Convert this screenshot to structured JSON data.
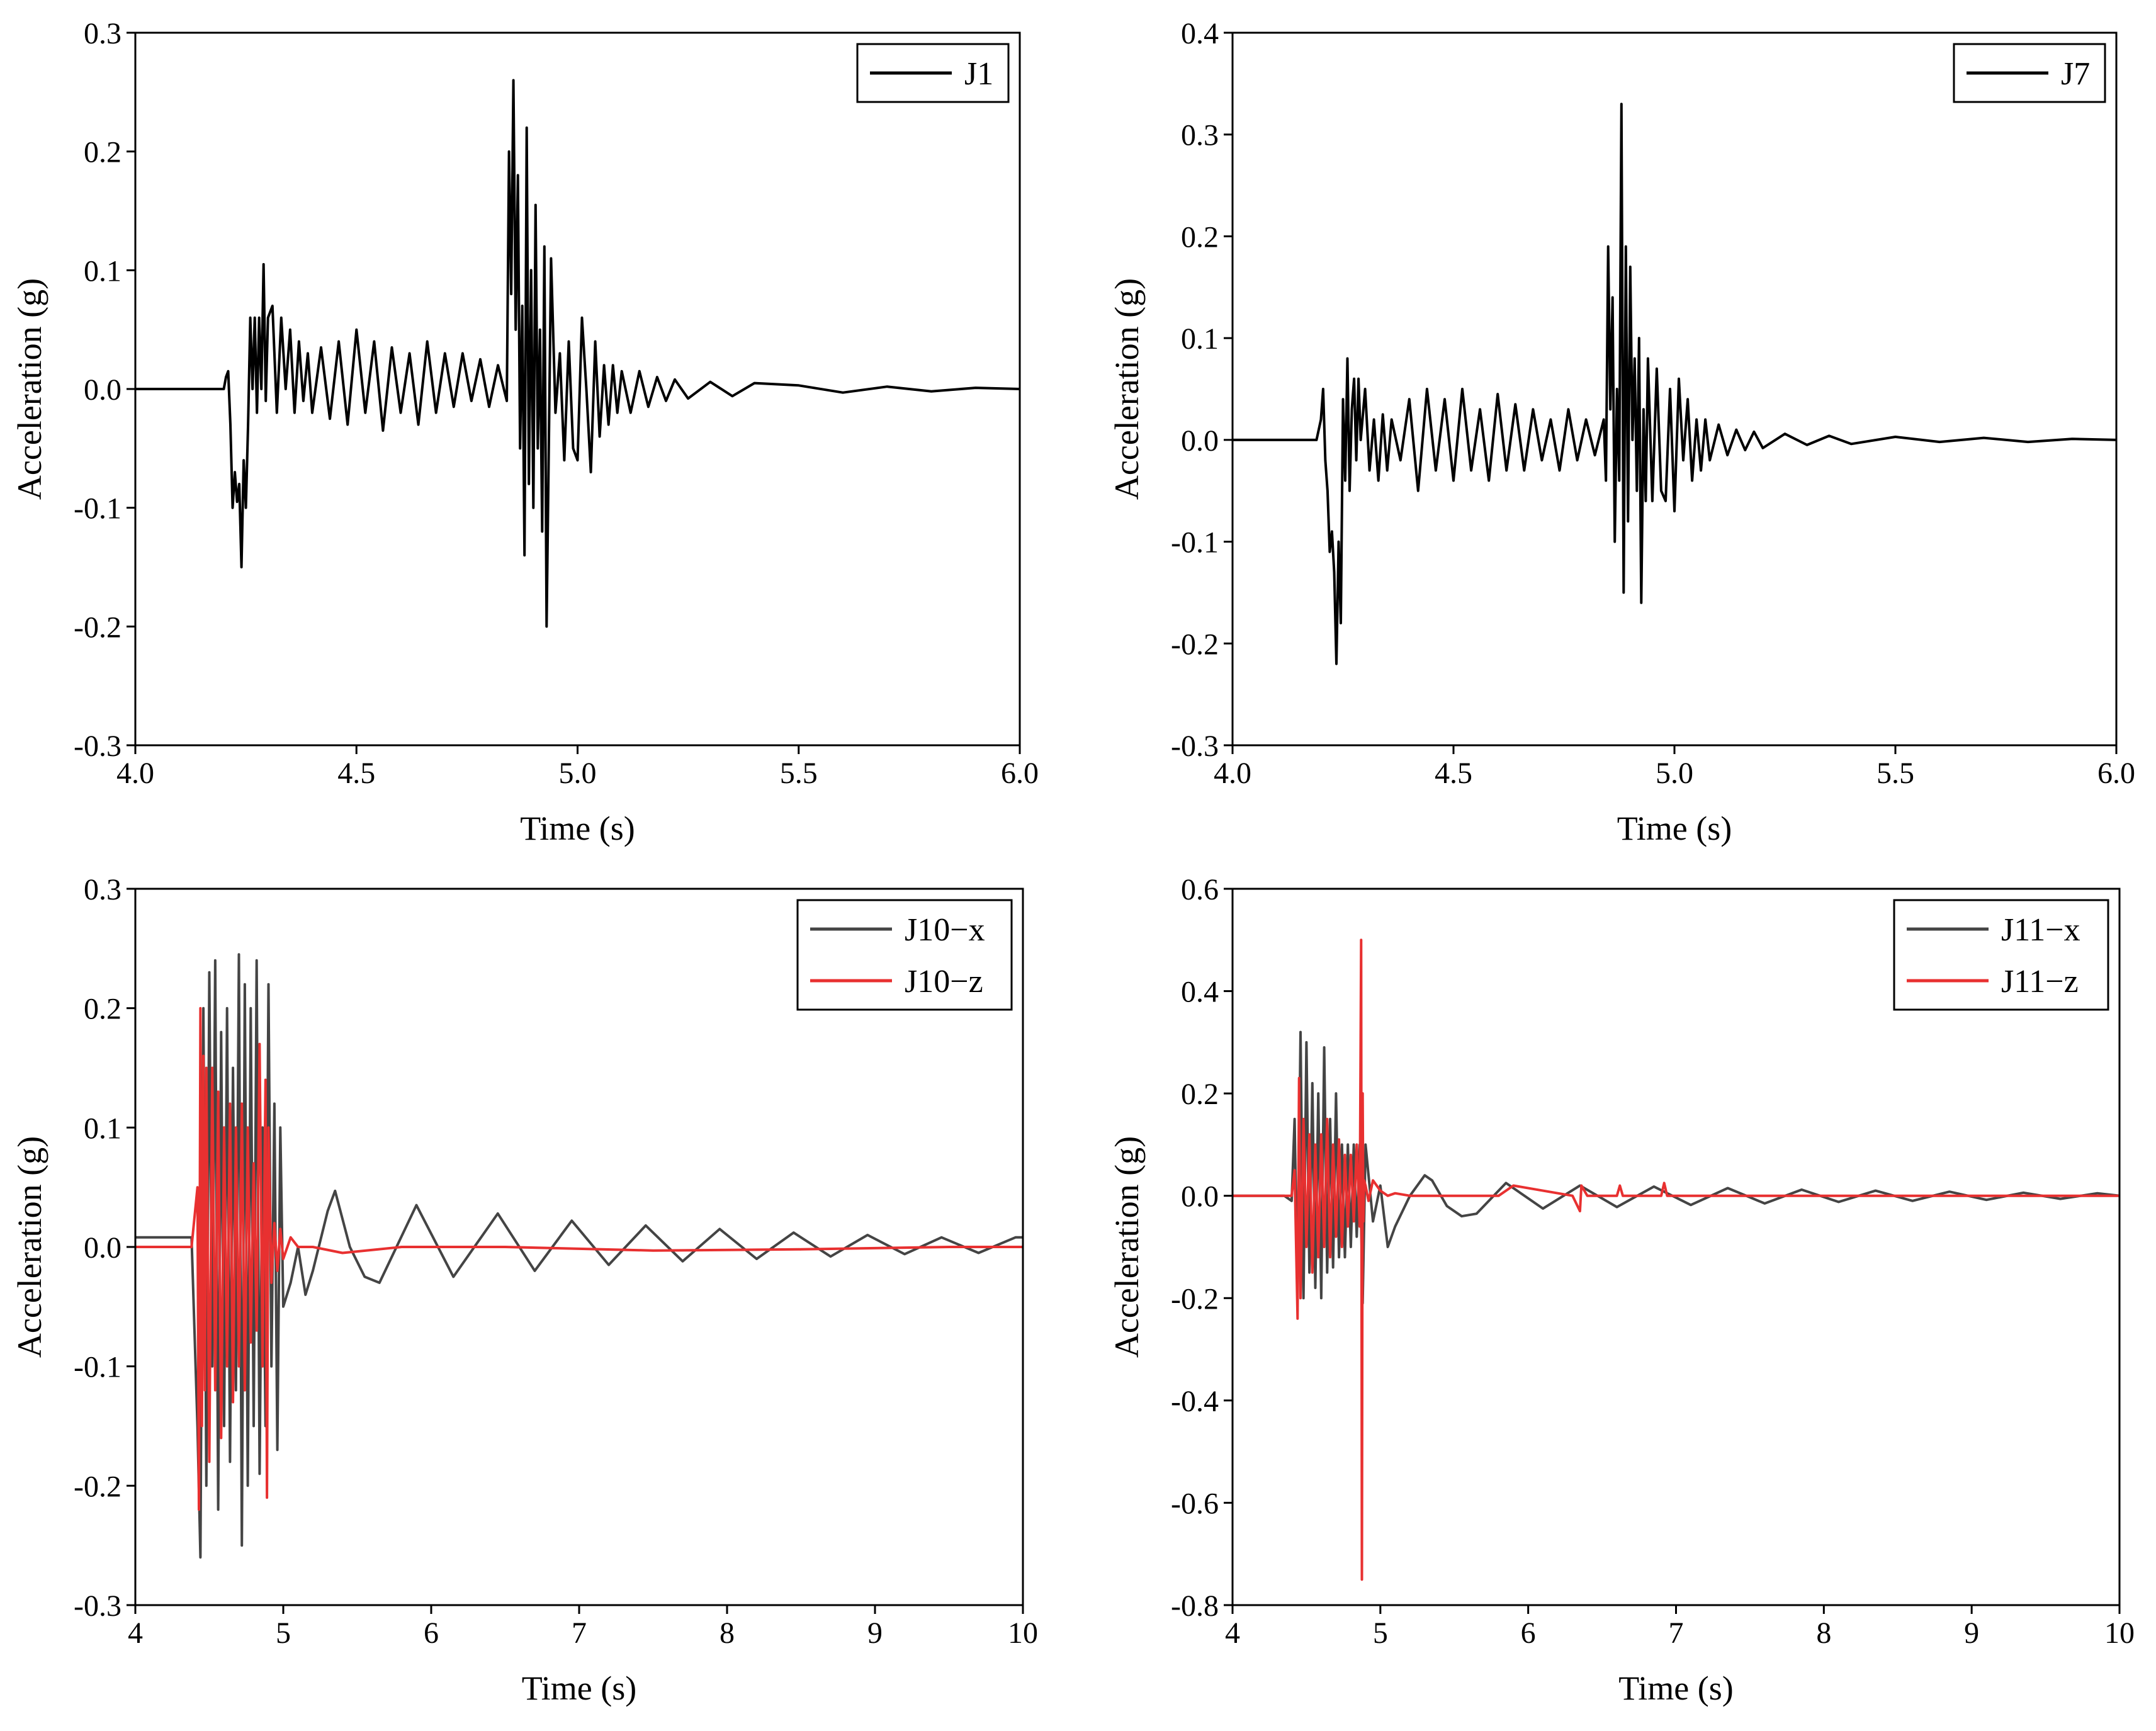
{
  "chart_data": [
    {
      "type": "line",
      "xlabel": "Time (s)",
      "ylabel": "Acceleration (g)",
      "xlim": [
        4.0,
        6.0
      ],
      "ylim": [
        -0.3,
        0.3
      ],
      "xticks": [
        "4.0",
        "4.5",
        "5.0",
        "5.5",
        "6.0"
      ],
      "yticks": [
        "-0.3",
        "-0.2",
        "-0.1",
        "0.0",
        "0.1",
        "0.2",
        "0.3"
      ],
      "legend": "top-right",
      "series": [
        {
          "name": "J1",
          "color": "#000000",
          "x": [
            4.0,
            4.2,
            4.205,
            4.21,
            4.215,
            4.22,
            4.225,
            4.23,
            4.235,
            4.24,
            4.245,
            4.25,
            4.255,
            4.26,
            4.265,
            4.27,
            4.275,
            4.28,
            4.285,
            4.29,
            4.295,
            4.3,
            4.31,
            4.32,
            4.33,
            4.34,
            4.35,
            4.36,
            4.37,
            4.38,
            4.39,
            4.4,
            4.42,
            4.44,
            4.46,
            4.48,
            4.5,
            4.52,
            4.54,
            4.56,
            4.58,
            4.6,
            4.62,
            4.64,
            4.66,
            4.68,
            4.7,
            4.72,
            4.74,
            4.76,
            4.78,
            4.8,
            4.82,
            4.84,
            4.845,
            4.85,
            4.855,
            4.86,
            4.865,
            4.87,
            4.875,
            4.88,
            4.885,
            4.89,
            4.895,
            4.9,
            4.905,
            4.91,
            4.915,
            4.92,
            4.925,
            4.93,
            4.935,
            4.94,
            4.95,
            4.96,
            4.97,
            4.98,
            4.99,
            5.0,
            5.01,
            5.02,
            5.03,
            5.04,
            5.05,
            5.06,
            5.07,
            5.08,
            5.09,
            5.1,
            5.12,
            5.14,
            5.16,
            5.18,
            5.2,
            5.22,
            5.25,
            5.3,
            5.35,
            5.4,
            5.5,
            5.6,
            5.7,
            5.8,
            5.9,
            6.0
          ],
          "values": [
            0.0,
            0.0,
            0.01,
            0.015,
            -0.03,
            -0.1,
            -0.07,
            -0.095,
            -0.08,
            -0.15,
            -0.06,
            -0.1,
            -0.03,
            0.06,
            0.0,
            0.06,
            -0.02,
            0.06,
            0.0,
            0.105,
            -0.01,
            0.06,
            0.07,
            -0.02,
            0.06,
            0.0,
            0.05,
            -0.02,
            0.04,
            -0.01,
            0.03,
            -0.02,
            0.035,
            -0.025,
            0.04,
            -0.03,
            0.05,
            -0.02,
            0.04,
            -0.035,
            0.035,
            -0.02,
            0.03,
            -0.03,
            0.04,
            -0.02,
            0.03,
            -0.015,
            0.03,
            -0.01,
            0.025,
            -0.015,
            0.02,
            -0.01,
            0.2,
            0.08,
            0.26,
            0.05,
            0.18,
            -0.05,
            0.07,
            -0.14,
            0.22,
            -0.08,
            0.1,
            -0.1,
            0.155,
            -0.05,
            0.05,
            -0.12,
            0.12,
            -0.2,
            -0.05,
            0.11,
            -0.02,
            0.03,
            -0.06,
            0.04,
            -0.05,
            -0.06,
            0.06,
            0.0,
            -0.07,
            0.04,
            -0.04,
            0.02,
            -0.03,
            0.02,
            -0.02,
            0.015,
            -0.02,
            0.015,
            -0.015,
            0.01,
            -0.01,
            0.008,
            -0.008,
            0.006,
            -0.006,
            0.005,
            0.003,
            -0.003,
            0.002,
            -0.002,
            0.001,
            0.0
          ]
        }
      ]
    },
    {
      "type": "line",
      "xlabel": "Time (s)",
      "ylabel": "Acceleration (g)",
      "xlim": [
        4.0,
        6.0
      ],
      "ylim": [
        -0.3,
        0.4
      ],
      "xticks": [
        "4.0",
        "4.5",
        "5.0",
        "5.5",
        "6.0"
      ],
      "yticks": [
        "-0.3",
        "-0.2",
        "-0.1",
        "0.0",
        "0.1",
        "0.2",
        "0.3",
        "0.4"
      ],
      "legend": "top-right",
      "series": [
        {
          "name": "J7",
          "color": "#000000",
          "x": [
            4.0,
            4.19,
            4.2,
            4.205,
            4.21,
            4.215,
            4.22,
            4.225,
            4.23,
            4.235,
            4.24,
            4.245,
            4.25,
            4.255,
            4.26,
            4.265,
            4.27,
            4.275,
            4.28,
            4.285,
            4.29,
            4.3,
            4.31,
            4.32,
            4.33,
            4.34,
            4.35,
            4.36,
            4.38,
            4.4,
            4.42,
            4.44,
            4.46,
            4.48,
            4.5,
            4.52,
            4.54,
            4.56,
            4.58,
            4.6,
            4.62,
            4.64,
            4.66,
            4.68,
            4.7,
            4.72,
            4.74,
            4.76,
            4.78,
            4.8,
            4.82,
            4.84,
            4.845,
            4.85,
            4.855,
            4.86,
            4.865,
            4.87,
            4.875,
            4.88,
            4.885,
            4.89,
            4.895,
            4.9,
            4.905,
            4.91,
            4.915,
            4.92,
            4.925,
            4.93,
            4.935,
            4.94,
            4.95,
            4.96,
            4.97,
            4.98,
            4.99,
            5.0,
            5.01,
            5.02,
            5.03,
            5.04,
            5.05,
            5.06,
            5.07,
            5.08,
            5.1,
            5.12,
            5.14,
            5.16,
            5.18,
            5.2,
            5.25,
            5.3,
            5.35,
            5.4,
            5.5,
            5.6,
            5.7,
            5.8,
            5.9,
            6.0
          ],
          "values": [
            0.0,
            0.0,
            0.02,
            0.05,
            -0.02,
            -0.05,
            -0.11,
            -0.09,
            -0.13,
            -0.22,
            -0.1,
            -0.18,
            0.04,
            -0.04,
            0.08,
            -0.05,
            0.03,
            0.06,
            -0.02,
            0.06,
            0.0,
            0.05,
            -0.03,
            0.02,
            -0.04,
            0.025,
            -0.03,
            0.02,
            -0.02,
            0.04,
            -0.05,
            0.05,
            -0.03,
            0.04,
            -0.04,
            0.05,
            -0.03,
            0.03,
            -0.04,
            0.045,
            -0.03,
            0.035,
            -0.03,
            0.03,
            -0.02,
            0.02,
            -0.03,
            0.03,
            -0.02,
            0.02,
            -0.015,
            0.02,
            -0.04,
            0.19,
            0.03,
            0.14,
            -0.1,
            0.05,
            -0.04,
            0.33,
            -0.15,
            0.19,
            -0.08,
            0.17,
            0.0,
            0.08,
            -0.05,
            0.1,
            -0.16,
            0.03,
            -0.06,
            0.08,
            -0.06,
            0.07,
            -0.05,
            -0.06,
            0.05,
            -0.07,
            0.06,
            -0.02,
            0.04,
            -0.04,
            0.02,
            -0.03,
            0.02,
            -0.02,
            0.015,
            -0.015,
            0.01,
            -0.01,
            0.008,
            -0.008,
            0.006,
            -0.005,
            0.004,
            -0.004,
            0.003,
            -0.002,
            0.002,
            -0.002,
            0.001,
            0.0
          ]
        }
      ]
    },
    {
      "type": "line",
      "xlabel": "Time (s)",
      "ylabel": "Acceleration (g)",
      "xlim": [
        4,
        10
      ],
      "ylim": [
        -0.3,
        0.3
      ],
      "xticks": [
        "4",
        "5",
        "6",
        "7",
        "8",
        "9",
        "10"
      ],
      "yticks": [
        "-0.3",
        "-0.2",
        "-0.1",
        "0.0",
        "0.1",
        "0.2",
        "0.3"
      ],
      "legend": "top-right",
      "series": [
        {
          "name": "J10−x",
          "color": "#444444",
          "x": [
            4.0,
            4.38,
            4.42,
            4.44,
            4.46,
            4.48,
            4.5,
            4.52,
            4.54,
            4.56,
            4.58,
            4.6,
            4.62,
            4.64,
            4.66,
            4.68,
            4.7,
            4.72,
            4.74,
            4.76,
            4.78,
            4.8,
            4.82,
            4.84,
            4.86,
            4.88,
            4.9,
            4.92,
            4.94,
            4.96,
            4.98,
            5.0,
            5.05,
            5.1,
            5.15,
            5.2,
            5.3,
            5.35,
            5.45,
            5.55,
            5.65,
            5.9,
            6.15,
            6.45,
            6.7,
            6.95,
            7.2,
            7.45,
            7.7,
            7.95,
            8.2,
            8.45,
            8.7,
            8.95,
            9.2,
            9.45,
            9.7,
            9.95,
            10.0
          ],
          "values": [
            0.008,
            0.008,
            -0.15,
            -0.26,
            0.2,
            -0.2,
            0.23,
            -0.1,
            0.24,
            -0.22,
            0.18,
            -0.15,
            0.2,
            -0.18,
            0.15,
            -0.12,
            0.245,
            -0.25,
            0.22,
            -0.2,
            0.2,
            -0.15,
            0.24,
            -0.19,
            0.1,
            -0.15,
            0.22,
            -0.1,
            0.12,
            -0.17,
            0.1,
            -0.05,
            -0.03,
            0.0,
            -0.04,
            -0.02,
            0.03,
            0.047,
            0.0,
            -0.025,
            -0.03,
            0.035,
            -0.025,
            0.028,
            -0.02,
            0.022,
            -0.015,
            0.018,
            -0.012,
            0.015,
            -0.01,
            0.012,
            -0.008,
            0.01,
            -0.006,
            0.008,
            -0.005,
            0.008,
            0.008
          ]
        },
        {
          "name": "J10−z",
          "color": "#e83030",
          "x": [
            4.0,
            4.38,
            4.42,
            4.43,
            4.44,
            4.45,
            4.46,
            4.47,
            4.48,
            4.5,
            4.52,
            4.54,
            4.56,
            4.58,
            4.6,
            4.62,
            4.64,
            4.66,
            4.68,
            4.7,
            4.72,
            4.74,
            4.76,
            4.78,
            4.8,
            4.82,
            4.84,
            4.86,
            4.88,
            4.89,
            4.9,
            4.92,
            4.94,
            4.96,
            4.98,
            5.0,
            5.05,
            5.1,
            5.2,
            5.4,
            5.8,
            6.5,
            7.5,
            8.5,
            9.5,
            10.0
          ],
          "values": [
            0.0,
            0.0,
            0.05,
            -0.22,
            0.2,
            -0.15,
            0.16,
            -0.12,
            0.15,
            -0.18,
            0.15,
            -0.12,
            0.13,
            -0.16,
            0.1,
            -0.1,
            0.12,
            -0.13,
            0.1,
            -0.1,
            0.12,
            -0.12,
            0.1,
            -0.08,
            0.07,
            -0.07,
            0.17,
            -0.1,
            0.14,
            -0.21,
            0.1,
            -0.03,
            0.02,
            -0.02,
            0.015,
            -0.01,
            0.008,
            0.0,
            0.0,
            -0.005,
            0.0,
            0.0,
            -0.003,
            -0.002,
            0.0,
            0.0
          ]
        }
      ]
    },
    {
      "type": "line",
      "xlabel": "Time (s)",
      "ylabel": "Acceleration (g)",
      "xlim": [
        4,
        10
      ],
      "ylim": [
        -0.8,
        0.6
      ],
      "xticks": [
        "4",
        "5",
        "6",
        "7",
        "8",
        "9",
        "10"
      ],
      "yticks": [
        "-0.8",
        "-0.6",
        "-0.4",
        "-0.2",
        "0.0",
        "0.2",
        "0.4",
        "0.6"
      ],
      "legend": "top-right",
      "series": [
        {
          "name": "J11−x",
          "color": "#444444",
          "x": [
            4.0,
            4.35,
            4.4,
            4.42,
            4.44,
            4.46,
            4.48,
            4.5,
            4.52,
            4.54,
            4.56,
            4.58,
            4.6,
            4.62,
            4.64,
            4.66,
            4.68,
            4.7,
            4.72,
            4.74,
            4.76,
            4.78,
            4.8,
            4.82,
            4.84,
            4.86,
            4.88,
            4.9,
            4.95,
            5.0,
            5.05,
            5.1,
            5.2,
            5.3,
            5.35,
            5.45,
            5.55,
            5.65,
            5.85,
            6.1,
            6.35,
            6.6,
            6.85,
            7.1,
            7.35,
            7.6,
            7.85,
            8.1,
            8.35,
            8.6,
            8.85,
            9.1,
            9.35,
            9.6,
            9.85,
            10.0
          ],
          "values": [
            0.0,
            0.0,
            -0.01,
            0.15,
            -0.2,
            0.32,
            -0.2,
            0.3,
            -0.15,
            0.22,
            -0.18,
            0.2,
            -0.2,
            0.29,
            -0.15,
            0.15,
            -0.14,
            0.2,
            -0.12,
            0.1,
            -0.12,
            0.1,
            -0.1,
            0.1,
            -0.08,
            0.1,
            -0.21,
            0.1,
            -0.05,
            0.02,
            -0.1,
            -0.06,
            0.0,
            0.04,
            0.03,
            -0.02,
            -0.04,
            -0.035,
            0.025,
            -0.025,
            0.02,
            -0.022,
            0.018,
            -0.018,
            0.015,
            -0.015,
            0.012,
            -0.012,
            0.01,
            -0.01,
            0.008,
            -0.008,
            0.006,
            -0.006,
            0.005,
            0.0
          ]
        },
        {
          "name": "J11−z",
          "color": "#e83030",
          "x": [
            4.0,
            4.4,
            4.42,
            4.44,
            4.45,
            4.46,
            4.48,
            4.5,
            4.52,
            4.54,
            4.56,
            4.58,
            4.6,
            4.62,
            4.64,
            4.66,
            4.68,
            4.7,
            4.72,
            4.74,
            4.76,
            4.78,
            4.8,
            4.82,
            4.84,
            4.86,
            4.87,
            4.875,
            4.88,
            4.885,
            4.89,
            4.9,
            4.92,
            4.95,
            5.0,
            5.05,
            5.1,
            5.2,
            5.3,
            5.5,
            5.8,
            5.9,
            6.3,
            6.35,
            6.36,
            6.4,
            6.6,
            6.62,
            6.64,
            6.9,
            6.92,
            6.94,
            7.5,
            8.0,
            8.5,
            9.0,
            9.5,
            10.0
          ],
          "values": [
            0.0,
            0.0,
            0.05,
            -0.24,
            0.23,
            -0.2,
            0.15,
            -0.1,
            0.12,
            -0.15,
            0.1,
            -0.12,
            0.12,
            -0.1,
            0.15,
            -0.12,
            0.1,
            -0.08,
            0.11,
            -0.1,
            0.08,
            -0.06,
            0.08,
            -0.05,
            0.1,
            -0.06,
            0.5,
            -0.75,
            0.2,
            -0.05,
            0.03,
            0.02,
            -0.01,
            0.03,
            0.01,
            0.0,
            0.005,
            0.0,
            0.0,
            0.0,
            0.0,
            0.02,
            0.0,
            -0.03,
            0.02,
            0.0,
            0.0,
            0.02,
            0.0,
            0.0,
            0.025,
            0.0,
            0.0,
            0.0,
            0.0,
            0.0,
            0.0,
            0.0
          ]
        }
      ]
    }
  ]
}
